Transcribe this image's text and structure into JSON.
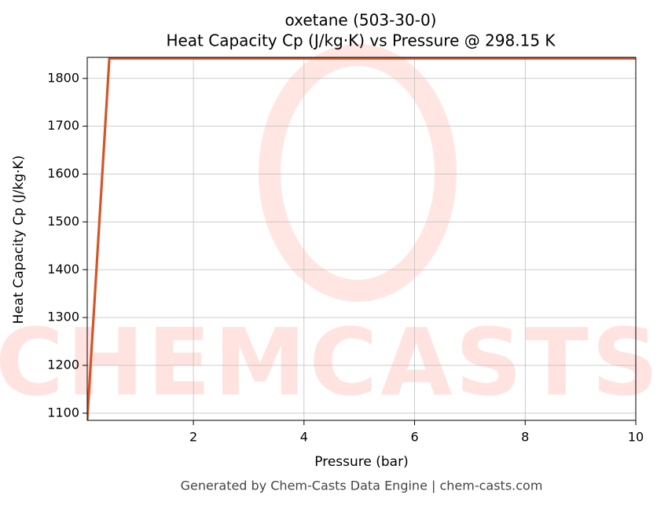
{
  "chart_data": {
    "type": "line",
    "title": "oxetane (503-30-0)",
    "subtitle": "Heat Capacity Cp (J/kg·K) vs Pressure @ 298.15 K",
    "x_label": "Pressure (bar)",
    "y_label": "Heat Capacity Cp (J/kg·K)",
    "footer": "Generated by Chem-Casts Data Engine | chem-casts.com",
    "watermark": "CHEMCASTS",
    "x": [
      0.08,
      0.48,
      10
    ],
    "series": [
      {
        "name": "Cp",
        "color": "#d4552a",
        "values": [
          1085,
          1842,
          1842
        ]
      }
    ],
    "xlim": [
      0.08,
      10
    ],
    "xticks": [
      2,
      4,
      6,
      8,
      10
    ],
    "ylim": [
      1085,
      1844
    ],
    "yticks": [
      1100,
      1200,
      1300,
      1400,
      1500,
      1600,
      1700,
      1800
    ],
    "grid": true
  }
}
